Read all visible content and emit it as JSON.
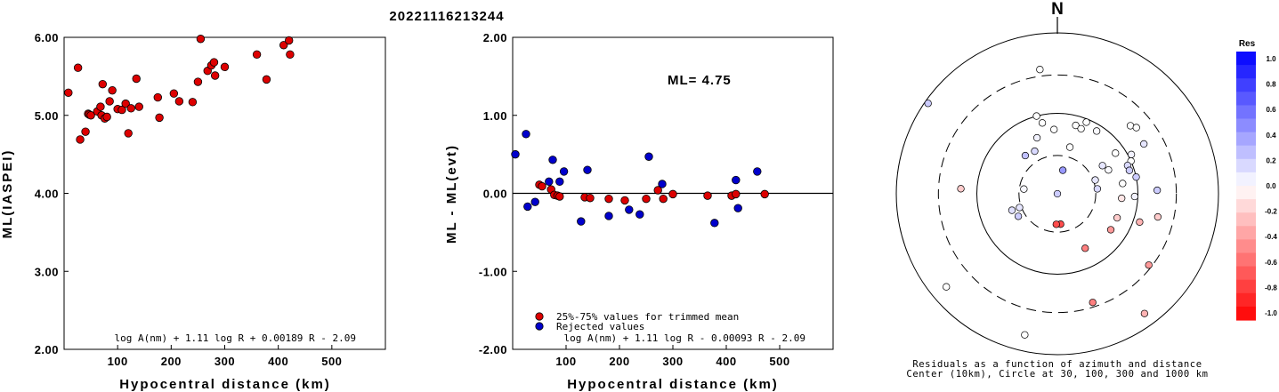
{
  "title": "20221116213244",
  "colors": {
    "accepted": "#dd0000",
    "rejected": "#0000cc"
  },
  "chart_data": [
    {
      "type": "scatter",
      "name": "left",
      "xlabel": "Hypocentral distance (km)",
      "ylabel": "ML(IASPEI)",
      "xlim": [
        0,
        600
      ],
      "ylim": [
        2.0,
        6.0
      ],
      "xticks": [
        100,
        200,
        300,
        400,
        500
      ],
      "yticks": [
        "2.00",
        "3.00",
        "4.00",
        "5.00",
        "6.00"
      ],
      "formula": "log A(nm) + 1.11 log R + 0.00189 R - 2.09",
      "points": [
        [
          8,
          5.29
        ],
        [
          26,
          5.61
        ],
        [
          30,
          4.69
        ],
        [
          40,
          4.79
        ],
        [
          45,
          5.02
        ],
        [
          47,
          5.01
        ],
        [
          50,
          5.0
        ],
        [
          62,
          5.05
        ],
        [
          68,
          5.11
        ],
        [
          70,
          5.0
        ],
        [
          72,
          5.4
        ],
        [
          76,
          4.96
        ],
        [
          80,
          4.98
        ],
        [
          85,
          5.18
        ],
        [
          90,
          5.32
        ],
        [
          100,
          5.08
        ],
        [
          108,
          5.07
        ],
        [
          115,
          5.15
        ],
        [
          120,
          4.77
        ],
        [
          125,
          5.09
        ],
        [
          135,
          5.47
        ],
        [
          140,
          5.11
        ],
        [
          175,
          5.23
        ],
        [
          178,
          4.97
        ],
        [
          205,
          5.28
        ],
        [
          215,
          5.18
        ],
        [
          240,
          5.17
        ],
        [
          250,
          5.43
        ],
        [
          255,
          5.98
        ],
        [
          268,
          5.57
        ],
        [
          275,
          5.64
        ],
        [
          280,
          5.68
        ],
        [
          282,
          5.51
        ],
        [
          300,
          5.62
        ],
        [
          360,
          5.78
        ],
        [
          378,
          5.46
        ],
        [
          410,
          5.9
        ],
        [
          420,
          5.96
        ],
        [
          422,
          5.78
        ]
      ]
    },
    {
      "type": "scatter",
      "name": "middle",
      "xlabel": "Hypocentral distance (km)",
      "ylabel": "ML - ML(evt)",
      "xlim": [
        0,
        600
      ],
      "ylim": [
        -2.0,
        2.0
      ],
      "xticks": [
        100,
        200,
        300,
        400,
        500
      ],
      "yticks": [
        "-2.00",
        "-1.00",
        "0.00",
        "1.00",
        "2.00"
      ],
      "ml_label": "ML= 4.75",
      "legend": {
        "accepted": "25%-75% values for trimmed mean",
        "rejected": "Rejected values"
      },
      "formula": "log A(nm) + 1.11 log R - 0.00093 R - 2.09",
      "accepted": [
        [
          50,
          0.11
        ],
        [
          55,
          0.09
        ],
        [
          72,
          0.05
        ],
        [
          78,
          -0.02
        ],
        [
          84,
          -0.03
        ],
        [
          88,
          -0.04
        ],
        [
          135,
          -0.05
        ],
        [
          145,
          -0.06
        ],
        [
          180,
          -0.07
        ],
        [
          210,
          -0.09
        ],
        [
          250,
          -0.07
        ],
        [
          272,
          0.04
        ],
        [
          282,
          -0.07
        ],
        [
          300,
          -0.01
        ],
        [
          365,
          -0.03
        ],
        [
          410,
          -0.03
        ],
        [
          418,
          -0.01
        ],
        [
          472,
          -0.01
        ]
      ],
      "rejected": [
        [
          5,
          0.5
        ],
        [
          25,
          0.76
        ],
        [
          28,
          -0.17
        ],
        [
          42,
          -0.11
        ],
        [
          68,
          0.15
        ],
        [
          75,
          0.43
        ],
        [
          88,
          0.15
        ],
        [
          96,
          0.28
        ],
        [
          128,
          -0.36
        ],
        [
          140,
          0.3
        ],
        [
          180,
          -0.29
        ],
        [
          218,
          -0.21
        ],
        [
          238,
          -0.27
        ],
        [
          255,
          0.47
        ],
        [
          280,
          0.12
        ],
        [
          378,
          -0.38
        ],
        [
          418,
          0.17
        ],
        [
          422,
          -0.19
        ],
        [
          458,
          0.28
        ]
      ]
    },
    {
      "type": "polar",
      "name": "azimuth",
      "north_label": "N",
      "rings": [
        {
          "km": 10,
          "style": "center"
        },
        {
          "km": 30,
          "style": "dashed"
        },
        {
          "km": 100,
          "style": "solid"
        },
        {
          "km": 300,
          "style": "dashed"
        },
        {
          "km": 1000,
          "style": "solid"
        }
      ],
      "caption_lines": [
        "Residuals as a function of azimuth and distance",
        "Center (10km), Circle at 30, 100, 300 and 1000 km"
      ],
      "colorbar": {
        "title": "Res",
        "ticks": [
          "1.0",
          "0.8",
          "0.6",
          "0.4",
          "0.2",
          "0.0",
          "-0.2",
          "-0.4",
          "-0.6",
          "-0.8",
          "-1.0"
        ]
      },
      "points": [
        [
          250,
          25,
          0.1
        ],
        [
          250,
          30,
          0.12
        ],
        [
          240,
          28,
          0.2
        ],
        [
          278,
          21,
          0.03
        ],
        [
          305,
          98,
          0.2
        ],
        [
          320,
          31,
          0.25
        ],
        [
          332,
          30,
          0.15
        ],
        [
          340,
          37,
          0.05
        ],
        [
          345,
          50,
          0.0
        ],
        [
          348,
          45,
          0.0
        ],
        [
          357,
          40,
          0.0
        ],
        [
          352,
          78,
          0.0
        ],
        [
          13,
          15,
          0.4
        ],
        [
          15,
          30,
          0.0
        ],
        [
          15,
          44,
          0.0
        ],
        [
          20,
          43,
          0.0
        ],
        [
          22,
          48,
          0.0
        ],
        [
          32,
          46,
          0.02
        ],
        [
          47,
          62,
          0.0
        ],
        [
          50,
          64,
          0.0
        ],
        [
          55,
          44,
          0.0
        ],
        [
          58,
          33,
          0.1
        ],
        [
          60,
          62,
          0.1
        ],
        [
          62,
          52,
          0.05
        ],
        [
          65,
          35,
          0.02
        ],
        [
          66,
          50,
          0.0
        ],
        [
          68,
          47,
          0.15
        ],
        [
          70,
          25,
          0.1
        ],
        [
          72,
          47,
          0.2
        ],
        [
          78,
          50,
          0.2
        ],
        [
          81,
          41,
          0.0
        ],
        [
          83,
          25,
          0.15
        ],
        [
          88,
          62,
          0.2
        ],
        [
          92,
          48,
          0.05
        ],
        [
          94,
          40,
          -0.1
        ],
        [
          103,
          64,
          -0.2
        ],
        [
          109,
          54,
          -0.3
        ],
        [
          112,
          40,
          -0.2
        ],
        [
          124,
          40,
          -0.4
        ],
        [
          128,
          72,
          -0.4
        ],
        [
          144,
          92,
          -0.3
        ],
        [
          153,
          38,
          -0.5
        ],
        [
          162,
          71,
          -0.5
        ],
        [
          174,
          19,
          -0.7
        ],
        [
          182,
          19,
          -0.7
        ],
        [
          187,
          0,
          0.2
        ],
        [
          193,
          90,
          0.0
        ],
        [
          230,
          90,
          0.0
        ],
        [
          273,
          60,
          -0.2
        ]
      ]
    }
  ]
}
